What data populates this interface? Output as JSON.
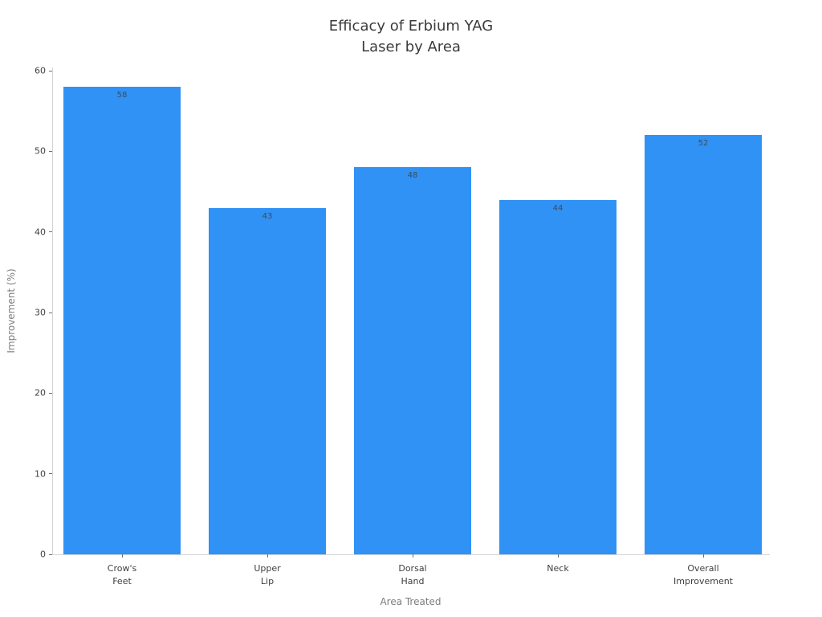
{
  "chart_data": {
    "type": "bar",
    "title_line1": "Efficacy of Erbium YAG",
    "title_line2": "Laser by Area",
    "xlabel": "Area Treated",
    "ylabel": "Improvement (%)",
    "categories": [
      [
        "Crow's",
        "Feet"
      ],
      [
        "Upper",
        "Lip"
      ],
      [
        "Dorsal",
        "Hand"
      ],
      [
        "Neck"
      ],
      [
        "Overall",
        "Improvement"
      ]
    ],
    "values": [
      58,
      43,
      48,
      44,
      52
    ],
    "value_labels": [
      "58",
      "43",
      "48",
      "44",
      "52"
    ],
    "yticks": [
      "0",
      "10",
      "20",
      "30",
      "40",
      "50",
      "60"
    ],
    "ytick_values": [
      0,
      10,
      20,
      30,
      40,
      50,
      60
    ],
    "ylim": [
      0,
      60
    ],
    "grid": false,
    "legend_position": "none",
    "bar_color": "#3092F5",
    "value_label_color": "#3f4c59",
    "title_color": "#3b3b3b",
    "axis_label_color": "#7d7d7d",
    "tick_label_color": "#424242",
    "spine_color": "#d4d4d4"
  }
}
